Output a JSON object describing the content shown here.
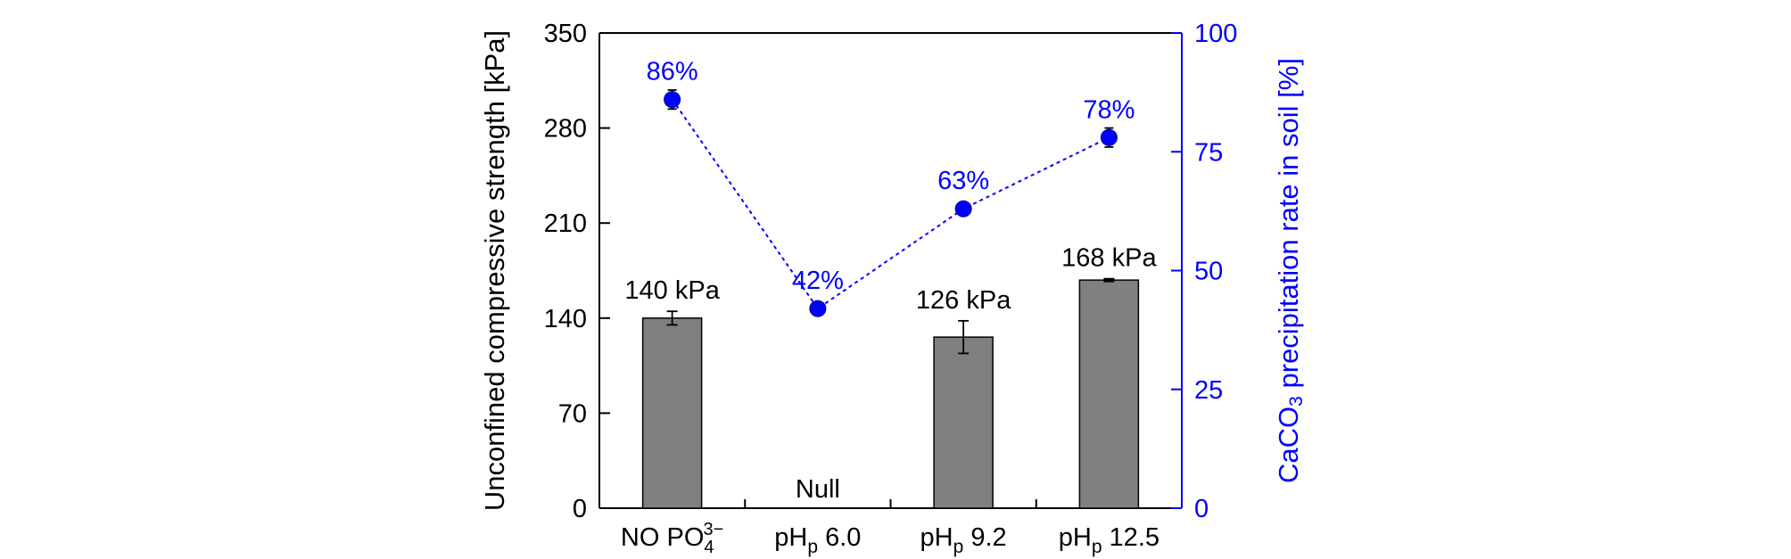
{
  "chart_data": {
    "type": "bar",
    "categories": [
      {
        "main": "NO PO",
        "sub": "4",
        "sup": "3−"
      },
      {
        "main": "pH",
        "sub": "p",
        "rest": " 6.0"
      },
      {
        "main": "pH",
        "sub": "p",
        "rest": " 9.2"
      },
      {
        "main": "pH",
        "sub": "p",
        "rest": " 12.5"
      }
    ],
    "bar_series": {
      "name": "Unconfined compressive strength",
      "values": [
        140,
        null,
        126,
        168
      ],
      "errors": [
        5,
        null,
        12,
        1
      ],
      "labels": [
        "140 kPa",
        "Null",
        "126 kPa",
        "168 kPa"
      ]
    },
    "line_series": {
      "name": "CaCO3 precipitation rate in soil",
      "values": [
        86,
        42,
        63,
        78
      ],
      "errors": [
        2,
        1,
        1,
        2
      ],
      "labels": [
        "86%",
        "42%",
        "63%",
        "78%"
      ]
    },
    "y_left": {
      "label": "Unconfined compressive strength [kPa]",
      "ylim": [
        0,
        350
      ],
      "ticks": [
        0,
        70,
        140,
        210,
        280,
        350
      ]
    },
    "y_right": {
      "label_pre": "CaCO",
      "label_sub": "3",
      "label_post": " precipitation rate in soil [%]",
      "ylim": [
        0,
        100
      ],
      "ticks": [
        0,
        25,
        50,
        75,
        100
      ]
    },
    "colors": {
      "bar": "#808080",
      "line": "#0000ff",
      "axis": "#000000"
    }
  }
}
